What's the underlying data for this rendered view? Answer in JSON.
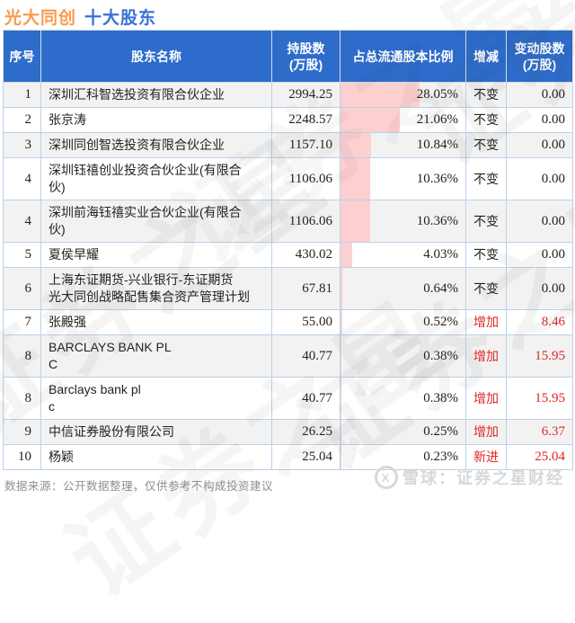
{
  "title": {
    "part1": "光大同创",
    "part2": "十大股东"
  },
  "colors": {
    "header_bg": "#2d6cca",
    "title_orange": "#f89c50",
    "title_blue": "#3a70d6",
    "bar_pink": "#fccfd0",
    "row_alt_bg": "#f2f2f2",
    "cell_border": "#b9d2ec",
    "change_red": "#e22626"
  },
  "chart_data": {
    "type": "table",
    "title": "光大同创 十大股东",
    "columns": [
      "序号",
      "股东名称",
      "持股数\n(万股)",
      "占总流通股本比例",
      "增减",
      "变动股数\n(万股)"
    ],
    "bar_column": "占总流通股本比例",
    "bar_max": 28.05,
    "rows": [
      {
        "no": "1",
        "name": "深圳汇科智选投资有限合伙企业",
        "shares": "2994.25",
        "pct": 28.05,
        "pct_label": "28.05%",
        "change": "不变",
        "change_qty": "0.00"
      },
      {
        "no": "2",
        "name": "张京涛",
        "shares": "2248.57",
        "pct": 21.06,
        "pct_label": "21.06%",
        "change": "不变",
        "change_qty": "0.00"
      },
      {
        "no": "3",
        "name": "深圳同创智选投资有限合伙企业",
        "shares": "1157.10",
        "pct": 10.84,
        "pct_label": "10.84%",
        "change": "不变",
        "change_qty": "0.00"
      },
      {
        "no": "4",
        "name": "深圳钰禧创业投资合伙企业(有限合\n伙)",
        "shares": "1106.06",
        "pct": 10.36,
        "pct_label": "10.36%",
        "change": "不变",
        "change_qty": "0.00"
      },
      {
        "no": "4",
        "name": "深圳前海钰禧实业合伙企业(有限合\n伙)",
        "shares": "1106.06",
        "pct": 10.36,
        "pct_label": "10.36%",
        "change": "不变",
        "change_qty": "0.00"
      },
      {
        "no": "5",
        "name": "夏侯早耀",
        "shares": "430.02",
        "pct": 4.03,
        "pct_label": "4.03%",
        "change": "不变",
        "change_qty": "0.00"
      },
      {
        "no": "6",
        "name": "上海东证期货-兴业银行-东证期货\n光大同创战略配售集合资产管理计划",
        "shares": "67.81",
        "pct": 0.64,
        "pct_label": "0.64%",
        "change": "不变",
        "change_qty": "0.00"
      },
      {
        "no": "7",
        "name": "张殿强",
        "shares": "55.00",
        "pct": 0.52,
        "pct_label": "0.52%",
        "change": "增加",
        "change_qty": "8.46"
      },
      {
        "no": "8",
        "name": "BARCLAYS BANK PL\nC",
        "shares": "40.77",
        "pct": 0.38,
        "pct_label": "0.38%",
        "change": "增加",
        "change_qty": "15.95"
      },
      {
        "no": "8",
        "name": "Barclays bank pl\nc",
        "shares": "40.77",
        "pct": 0.38,
        "pct_label": "0.38%",
        "change": "增加",
        "change_qty": "15.95"
      },
      {
        "no": "9",
        "name": "中信证券股份有限公司",
        "shares": "26.25",
        "pct": 0.25,
        "pct_label": "0.25%",
        "change": "增加",
        "change_qty": "6.37"
      },
      {
        "no": "10",
        "name": "杨颖",
        "shares": "25.04",
        "pct": 0.23,
        "pct_label": "0.23%",
        "change": "新进",
        "change_qty": "25.04"
      }
    ]
  },
  "watermark": {
    "text": "证券之星"
  },
  "footer": {
    "note": "数据来源：公开数据整理，仅供参考不构成投资建议"
  },
  "logo": {
    "icon": "snowball-x",
    "text": "雪球：证券之星财经"
  }
}
